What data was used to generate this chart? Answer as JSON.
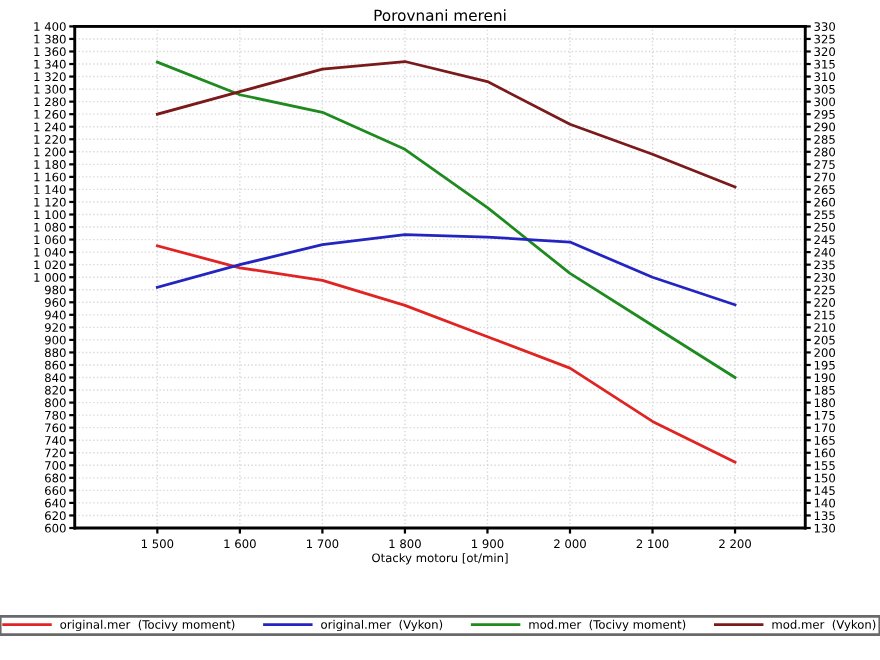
{
  "chart_data": {
    "type": "line",
    "title": "Porovnani mereni",
    "xlabel": "Otacky motoru [ot/min]",
    "categories": [
      "1 500",
      "1 600",
      "1 700",
      "1 800",
      "1 900",
      "2 000",
      "2 100",
      "2 200"
    ],
    "series": [
      {
        "name": "original.mer  (Tocivy moment)",
        "color": "#e02424",
        "values": [
          1050,
          1015,
          995,
          955,
          905,
          855,
          770,
          705
        ]
      },
      {
        "name": "original.mer  (Vykon)",
        "color": "#2424c0",
        "axis": "y2",
        "values": [
          226,
          235,
          243,
          247,
          246,
          244,
          230,
          219
        ]
      },
      {
        "name": "mod.mer  (Tocivy moment)",
        "color": "#1f8a1f",
        "values": [
          1343,
          1291,
          1263,
          1204,
          1111,
          1006,
          923,
          840
        ]
      },
      {
        "name": "mod.mer  (Vykon)",
        "color": "#7a1a1a",
        "axis": "y2",
        "values": [
          295,
          304,
          313,
          316,
          308,
          291,
          279,
          266
        ]
      }
    ],
    "ylim": [
      600,
      1400
    ],
    "yticks": [
      600,
      620,
      640,
      660,
      680,
      700,
      720,
      740,
      760,
      780,
      800,
      820,
      840,
      860,
      880,
      900,
      920,
      940,
      960,
      980,
      {
        "value": 1000,
        "label": "1 000"
      },
      {
        "value": 1020,
        "label": "1 020"
      },
      {
        "value": 1040,
        "label": "1 040"
      },
      {
        "value": 1060,
        "label": "1 060"
      },
      {
        "value": 1080,
        "label": "1 080"
      },
      {
        "value": 1100,
        "label": "1 100"
      },
      {
        "value": 1120,
        "label": "1 120"
      },
      {
        "value": 1140,
        "label": "1 140"
      },
      {
        "value": 1160,
        "label": "1 160"
      },
      {
        "value": 1180,
        "label": "1 180"
      },
      {
        "value": 1200,
        "label": "1 200"
      },
      {
        "value": 1220,
        "label": "1 220"
      },
      {
        "value": 1240,
        "label": "1 240"
      },
      {
        "value": 1260,
        "label": "1 260"
      },
      {
        "value": 1280,
        "label": "1 280"
      },
      {
        "value": 1300,
        "label": "1 300"
      },
      {
        "value": 1320,
        "label": "1 320"
      },
      {
        "value": 1340,
        "label": "1 340"
      },
      {
        "value": 1360,
        "label": "1 360"
      },
      {
        "value": 1380,
        "label": "1 380"
      },
      {
        "value": 1400,
        "label": "1 400"
      }
    ],
    "y2lim": [
      130,
      330
    ],
    "y2ticks": [
      130,
      135,
      140,
      145,
      150,
      155,
      160,
      165,
      170,
      175,
      180,
      185,
      190,
      195,
      200,
      205,
      210,
      215,
      220,
      225,
      230,
      235,
      240,
      245,
      250,
      255,
      260,
      265,
      270,
      275,
      280,
      285,
      290,
      295,
      300,
      305,
      310,
      315,
      320,
      325,
      330
    ],
    "grid": true,
    "legend": "bottom",
    "marker": "none",
    "line_style": "solid"
  }
}
